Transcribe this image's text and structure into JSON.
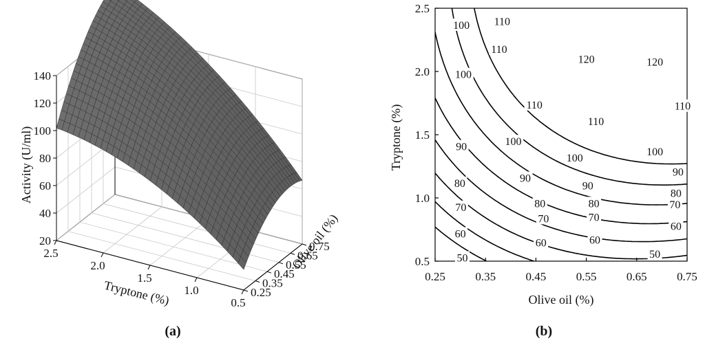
{
  "chart_data": [
    {
      "type": "surface",
      "panel_label": "(a)",
      "zlabel": "Activity (U/ml)",
      "xlabel": "Tryptone (%)",
      "ylabel": "Olive oil (%)",
      "z_ticks": [
        "20",
        "40",
        "60",
        "80",
        "100",
        "120",
        "140"
      ],
      "x_ticks": [
        "2.5",
        "2.0",
        "1.5",
        "1.0",
        "0.5"
      ],
      "y_ticks": [
        "0.25",
        "0.35",
        "0.45",
        "0.55",
        "0.65",
        "0.75"
      ],
      "zlim": [
        20,
        140
      ],
      "xlim": [
        0.5,
        2.5
      ],
      "ylim": [
        0.25,
        0.75
      ],
      "surface_color": "#6e6e6e",
      "mesh_color": "#2a2a2a",
      "grid": true
    },
    {
      "type": "contour",
      "panel_label": "(b)",
      "xlabel": "Olive oil (%)",
      "ylabel": "Tryptone (%)",
      "x_ticks": [
        "0.25",
        "0.35",
        "0.45",
        "0.55",
        "0.65",
        "0.75"
      ],
      "y_ticks": [
        "0.5",
        "1.0",
        "1.5",
        "2.0",
        "2.5"
      ],
      "xlim": [
        0.25,
        0.75
      ],
      "ylim": [
        0.5,
        2.5
      ],
      "levels": [
        50,
        60,
        70,
        80,
        90,
        100,
        110,
        120
      ],
      "grid": false,
      "contour_labels": [
        {
          "text": "50",
          "x": 0.304,
          "y": 0.53
        },
        {
          "text": "50",
          "x": 0.686,
          "y": 0.56
        },
        {
          "text": "60",
          "x": 0.3,
          "y": 0.72
        },
        {
          "text": "60",
          "x": 0.46,
          "y": 0.65
        },
        {
          "text": "60",
          "x": 0.567,
          "y": 0.67
        },
        {
          "text": "60",
          "x": 0.728,
          "y": 0.78
        },
        {
          "text": "70",
          "x": 0.301,
          "y": 0.93
        },
        {
          "text": "70",
          "x": 0.465,
          "y": 0.84
        },
        {
          "text": "70",
          "x": 0.565,
          "y": 0.85
        },
        {
          "text": "70",
          "x": 0.726,
          "y": 0.95
        },
        {
          "text": "80",
          "x": 0.299,
          "y": 1.12
        },
        {
          "text": "80",
          "x": 0.458,
          "y": 0.96
        },
        {
          "text": "80",
          "x": 0.565,
          "y": 0.96
        },
        {
          "text": "80",
          "x": 0.728,
          "y": 1.04
        },
        {
          "text": "90",
          "x": 0.302,
          "y": 1.41
        },
        {
          "text": "90",
          "x": 0.429,
          "y": 1.16
        },
        {
          "text": "90",
          "x": 0.553,
          "y": 1.1
        },
        {
          "text": "90",
          "x": 0.732,
          "y": 1.21
        },
        {
          "text": "100",
          "x": 0.306,
          "y": 1.98
        },
        {
          "text": "100",
          "x": 0.302,
          "y": 2.37
        },
        {
          "text": "100",
          "x": 0.405,
          "y": 1.45
        },
        {
          "text": "100",
          "x": 0.527,
          "y": 1.32
        },
        {
          "text": "100",
          "x": 0.686,
          "y": 1.37
        },
        {
          "text": "110",
          "x": 0.383,
          "y": 2.4
        },
        {
          "text": "110",
          "x": 0.377,
          "y": 2.18
        },
        {
          "text": "110",
          "x": 0.447,
          "y": 1.74
        },
        {
          "text": "110",
          "x": 0.569,
          "y": 1.61
        },
        {
          "text": "110",
          "x": 0.741,
          "y": 1.73
        },
        {
          "text": "120",
          "x": 0.55,
          "y": 2.1
        },
        {
          "text": "120",
          "x": 0.686,
          "y": 2.08
        }
      ]
    }
  ]
}
